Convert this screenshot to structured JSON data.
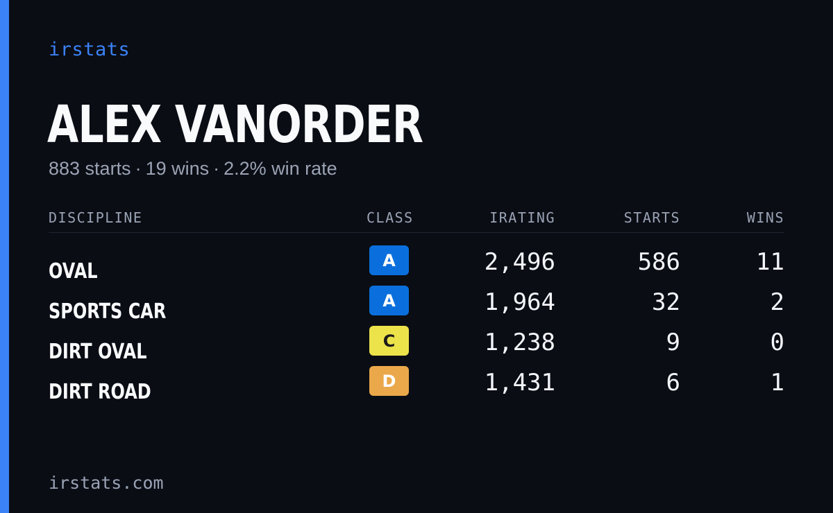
{
  "brand": "irstats",
  "driver": {
    "name": "ALEX VANORDER",
    "summary": {
      "starts": "883 starts",
      "wins": "19 wins",
      "win_rate": "2.2% win rate",
      "separator": "·"
    }
  },
  "table": {
    "headers": {
      "discipline": "DISCIPLINE",
      "class": "CLASS",
      "irating": "IRATING",
      "starts": "STARTS",
      "wins": "WINS"
    },
    "rows": [
      {
        "discipline": "OVAL",
        "class": "A",
        "class_bg": "#0a6fdc",
        "class_fg": "#ffffff",
        "irating": "2,496",
        "starts": "586",
        "wins": "11"
      },
      {
        "discipline": "SPORTS CAR",
        "class": "A",
        "class_bg": "#0a6fdc",
        "class_fg": "#ffffff",
        "irating": "1,964",
        "starts": "32",
        "wins": "2"
      },
      {
        "discipline": "DIRT OVAL",
        "class": "C",
        "class_bg": "#ece24a",
        "class_fg": "#1a1a1a",
        "irating": "1,238",
        "starts": "9",
        "wins": "0"
      },
      {
        "discipline": "DIRT ROAD",
        "class": "D",
        "class_bg": "#eaa84a",
        "class_fg": "#ffffff",
        "irating": "1,431",
        "starts": "6",
        "wins": "1"
      }
    ]
  },
  "footer": "irstats.com",
  "colors": {
    "background": "#0a0d14",
    "accent": "#3b82f6",
    "muted_text": "#9aa3b5"
  }
}
